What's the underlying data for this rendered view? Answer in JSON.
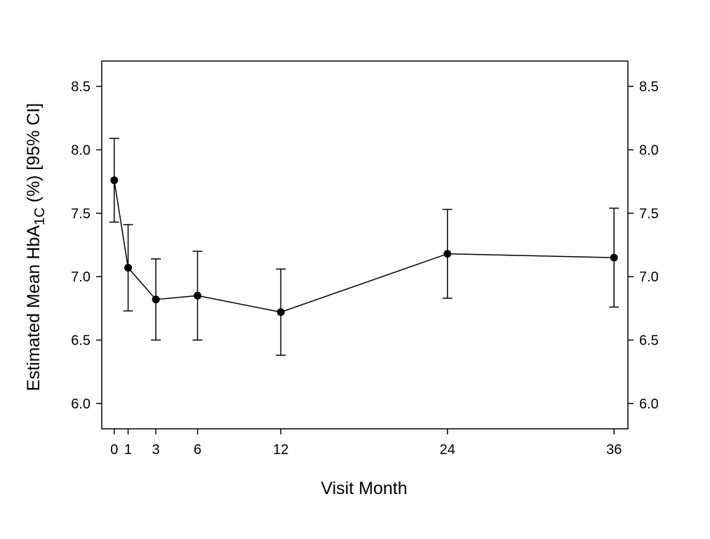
{
  "chart_data": {
    "type": "line",
    "title": "",
    "xlabel": "Visit Month",
    "ylabel": {
      "part1": "Estimated Mean HbA",
      "subscript": "1C",
      "part2": " (%) [95% CI]"
    },
    "x_ticks": [
      "0",
      "1",
      "3",
      "6",
      "12",
      "24",
      "36"
    ],
    "y_ticks": [
      "6.0",
      "6.5",
      "7.0",
      "7.5",
      "8.0",
      "8.5"
    ],
    "right_y_ticks": [
      "6.0",
      "6.5",
      "7.0",
      "7.5",
      "8.0",
      "8.5"
    ],
    "xlim": [
      -0.9,
      37
    ],
    "ylim": [
      5.8,
      8.7
    ],
    "grid": false,
    "legend": "none",
    "color": "#000000",
    "series": [
      {
        "points": [
          {
            "x": 0,
            "y": 7.76,
            "lower": 7.43,
            "upper": 8.09
          },
          {
            "x": 1,
            "y": 7.07,
            "lower": 6.73,
            "upper": 7.41
          },
          {
            "x": 3,
            "y": 6.82,
            "lower": 6.5,
            "upper": 7.14
          },
          {
            "x": 6,
            "y": 6.85,
            "lower": 6.5,
            "upper": 7.2
          },
          {
            "x": 12,
            "y": 6.72,
            "lower": 6.38,
            "upper": 7.06
          },
          {
            "x": 24,
            "y": 7.18,
            "lower": 6.83,
            "upper": 7.53
          },
          {
            "x": 36,
            "y": 7.15,
            "lower": 6.76,
            "upper": 7.54
          }
        ]
      }
    ]
  }
}
